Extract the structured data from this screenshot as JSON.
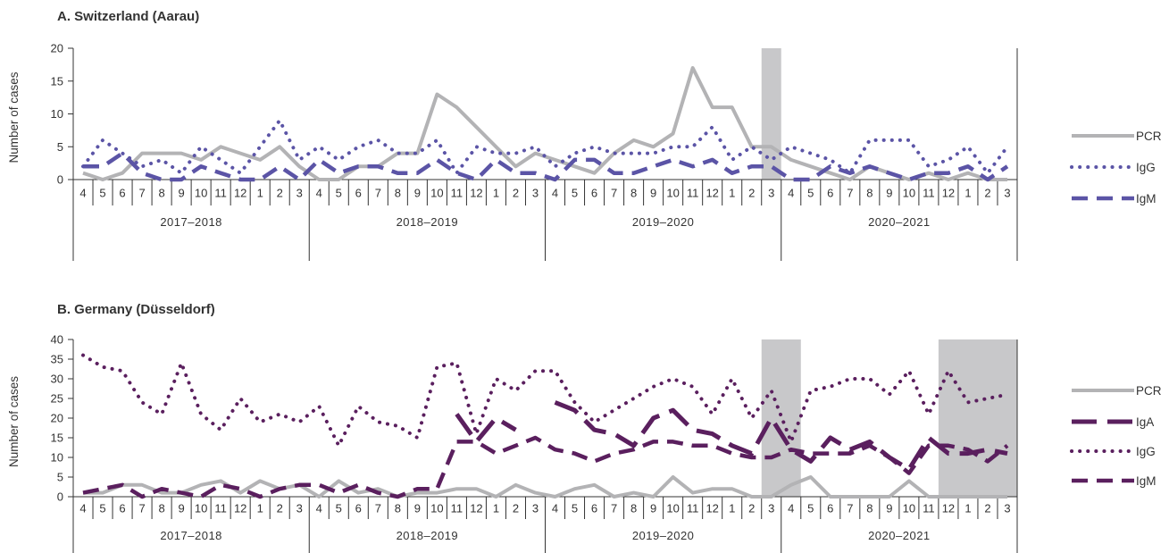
{
  "chart_data": [
    {
      "type": "line",
      "title": "A. Switzerland (Aarau)",
      "ylabel": "Number of cases",
      "ylim": [
        0,
        20
      ],
      "yticks": [
        0,
        5,
        10,
        15,
        20
      ],
      "months": [
        "4",
        "5",
        "6",
        "7",
        "8",
        "9",
        "10",
        "11",
        "12",
        "1",
        "2",
        "3",
        "4",
        "5",
        "6",
        "7",
        "8",
        "9",
        "10",
        "11",
        "12",
        "1",
        "2",
        "3",
        "4",
        "5",
        "6",
        "7",
        "8",
        "9",
        "10",
        "11",
        "12",
        "1",
        "2",
        "3",
        "4",
        "5",
        "6",
        "7",
        "8",
        "9",
        "10",
        "11",
        "12",
        "1",
        "2",
        "3"
      ],
      "seasons": [
        "2017–2018",
        "2018–2019",
        "2019–2020",
        "2020–2021"
      ],
      "shaded_month_ranges": [
        [
          35,
          36
        ]
      ],
      "legend_position": "right",
      "series": [
        {
          "name": "PCR",
          "style": "solid",
          "color": "#b3b3b5",
          "values": [
            1,
            0,
            1,
            4,
            4,
            4,
            3,
            5,
            4,
            3,
            5,
            2,
            0,
            0,
            2,
            2,
            4,
            4,
            13,
            11,
            8,
            5,
            2,
            4,
            3,
            2,
            1,
            4,
            6,
            5,
            7,
            17,
            11,
            11,
            5,
            5,
            3,
            2,
            1,
            0,
            2,
            1,
            0,
            1,
            0,
            1,
            0,
            0
          ]
        },
        {
          "name": "IgG",
          "style": "dotted",
          "color": "#5b54a6",
          "values": [
            2,
            6,
            4,
            2,
            3,
            1,
            5,
            3,
            1,
            5,
            9,
            3,
            5,
            3,
            5,
            6,
            4,
            4,
            6,
            1,
            5,
            4,
            4,
            5,
            2,
            4,
            5,
            4,
            4,
            4,
            5,
            5,
            8,
            3,
            5,
            3,
            5,
            4,
            3,
            1,
            6,
            6,
            6,
            2,
            3,
            5,
            1,
            5
          ]
        },
        {
          "name": "IgM",
          "style": "dashed",
          "color": "#5b54a6",
          "values": [
            2,
            2,
            4,
            1,
            0,
            0,
            2,
            1,
            0,
            0,
            2,
            0,
            3,
            1,
            2,
            2,
            1,
            1,
            3,
            1,
            0,
            3,
            1,
            1,
            0,
            3,
            3,
            1,
            1,
            2,
            3,
            2,
            3,
            1,
            2,
            2,
            0,
            0,
            2,
            1,
            2,
            1,
            0,
            1,
            1,
            2,
            0,
            2
          ]
        }
      ]
    },
    {
      "type": "line",
      "title": "B. Germany (Düsseldorf)",
      "ylabel": "Number of cases",
      "ylim": [
        0,
        40
      ],
      "yticks": [
        0,
        5,
        10,
        15,
        20,
        25,
        30,
        35,
        40
      ],
      "months": [
        "4",
        "5",
        "6",
        "7",
        "8",
        "9",
        "10",
        "11",
        "12",
        "1",
        "2",
        "3",
        "4",
        "5",
        "6",
        "7",
        "8",
        "9",
        "10",
        "11",
        "12",
        "1",
        "2",
        "3",
        "4",
        "5",
        "6",
        "7",
        "8",
        "9",
        "10",
        "11",
        "12",
        "1",
        "2",
        "3",
        "4",
        "5",
        "6",
        "7",
        "8",
        "9",
        "10",
        "11",
        "12",
        "1",
        "2",
        "3"
      ],
      "seasons": [
        "2017–2018",
        "2018–2019",
        "2019–2020",
        "2020–2021"
      ],
      "shaded_month_ranges": [
        [
          35,
          37
        ],
        [
          44,
          48
        ]
      ],
      "legend_position": "right",
      "series": [
        {
          "name": "PCR",
          "style": "solid",
          "color": "#b3b3b5",
          "values": [
            1,
            1,
            3,
            3,
            1,
            1,
            3,
            4,
            1,
            4,
            2,
            3,
            0,
            4,
            1,
            2,
            0,
            1,
            1,
            2,
            2,
            0,
            3,
            1,
            0,
            2,
            3,
            0,
            1,
            0,
            5,
            1,
            2,
            2,
            0,
            0,
            3,
            5,
            0,
            0,
            0,
            0,
            4,
            0,
            0,
            0,
            0,
            0
          ]
        },
        {
          "name": "IgA",
          "style": "longdash",
          "color": "#5a1f5e",
          "values": [
            null,
            null,
            null,
            null,
            null,
            null,
            null,
            null,
            null,
            null,
            null,
            null,
            null,
            null,
            null,
            null,
            null,
            null,
            null,
            21,
            14,
            20,
            17,
            null,
            24,
            22,
            17,
            16,
            13,
            20,
            22,
            17,
            16,
            13,
            11,
            20,
            12,
            9,
            15,
            12,
            14,
            10,
            7,
            15,
            11,
            11,
            12,
            11
          ]
        },
        {
          "name": "IgG",
          "style": "dotted",
          "color": "#5a1f5e",
          "values": [
            36,
            33,
            32,
            24,
            21,
            34,
            21,
            17,
            25,
            19,
            21,
            19,
            23,
            13,
            23,
            19,
            18,
            15,
            33,
            34,
            16,
            30,
            27,
            32,
            32,
            24,
            19,
            22,
            25,
            28,
            30,
            28,
            21,
            30,
            20,
            27,
            14,
            27,
            28,
            30,
            30,
            26,
            32,
            21,
            32,
            24,
            25,
            26
          ]
        },
        {
          "name": "IgM",
          "style": "dashed",
          "color": "#5a1f5e",
          "values": [
            1,
            2,
            3,
            0,
            2,
            1,
            0,
            3,
            2,
            0,
            2,
            3,
            3,
            1,
            3,
            1,
            0,
            2,
            2,
            14,
            14,
            11,
            13,
            15,
            12,
            11,
            9,
            11,
            12,
            14,
            14,
            13,
            13,
            11,
            10,
            10,
            12,
            11,
            11,
            11,
            13,
            10,
            6,
            13,
            13,
            12,
            9,
            13
          ]
        }
      ]
    }
  ]
}
